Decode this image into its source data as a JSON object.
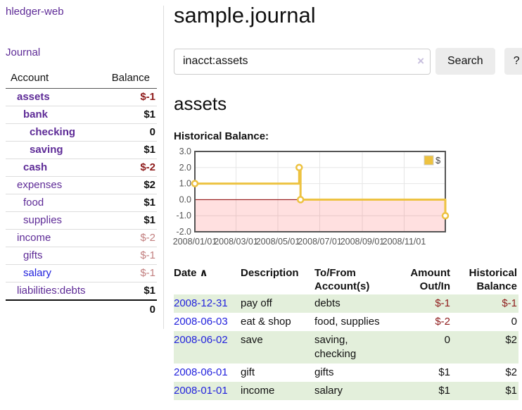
{
  "app": {
    "brand": "hledger-web"
  },
  "sidebar": {
    "nav": [
      {
        "label": "Journal"
      }
    ],
    "table": {
      "account_header": "Account",
      "balance_header": "Balance"
    },
    "accounts": [
      {
        "name": "assets",
        "level": 1,
        "bold": true,
        "name_style": "visited",
        "balance": "$-1",
        "balance_style": "neg-strong"
      },
      {
        "name": "bank",
        "level": 2,
        "bold": true,
        "name_style": "visited",
        "balance": "$1",
        "balance_style": "pos"
      },
      {
        "name": "checking",
        "level": 3,
        "bold": true,
        "name_style": "visited",
        "balance": "0",
        "balance_style": "pos"
      },
      {
        "name": "saving",
        "level": 3,
        "bold": true,
        "name_style": "visited",
        "balance": "$1",
        "balance_style": "pos"
      },
      {
        "name": "cash",
        "level": 2,
        "bold": true,
        "name_style": "visited",
        "balance": "$-2",
        "balance_style": "neg-strong"
      },
      {
        "name": "expenses",
        "level": 1,
        "bold": false,
        "name_style": "visited",
        "balance": "$2",
        "balance_style": "pos"
      },
      {
        "name": "food",
        "level": 2,
        "bold": false,
        "name_style": "visited",
        "balance": "$1",
        "balance_style": "pos"
      },
      {
        "name": "supplies",
        "level": 2,
        "bold": false,
        "name_style": "visited",
        "balance": "$1",
        "balance_style": "pos"
      },
      {
        "name": "income",
        "level": 1,
        "bold": false,
        "name_style": "visited",
        "balance": "$-2",
        "balance_style": "neg-soft"
      },
      {
        "name": "gifts",
        "level": 2,
        "bold": false,
        "name_style": "visited",
        "balance": "$-1",
        "balance_style": "neg-soft"
      },
      {
        "name": "salary",
        "level": 2,
        "bold": false,
        "name_style": "unvisited",
        "balance": "$-1",
        "balance_style": "neg-soft"
      },
      {
        "name": "liabilities:debts",
        "level": 1,
        "bold": false,
        "name_style": "visited",
        "balance": "$1",
        "balance_style": "pos"
      }
    ],
    "total": "0"
  },
  "header": {
    "title": "sample.journal"
  },
  "search": {
    "value": "inacct:assets",
    "clear_icon": "×",
    "button": "Search",
    "help_button": "?"
  },
  "main": {
    "account_heading": "assets",
    "chart_label": "Historical Balance:"
  },
  "chart_data": {
    "type": "line",
    "title": "Historical Balance:",
    "series": [
      {
        "name": "$",
        "color": "#edc240",
        "step": true,
        "points": [
          [
            "2008-01-01",
            1
          ],
          [
            "2008-06-01",
            2
          ],
          [
            "2008-06-03",
            0
          ],
          [
            "2008-12-31",
            -1
          ]
        ]
      }
    ],
    "x_range": [
      "2008-01-01",
      "2008-12-31"
    ],
    "x_ticks": [
      "2008/01/01",
      "2008/03/01",
      "2008/05/01",
      "2008/07/01",
      "2008/09/01",
      "2008/11/01"
    ],
    "y_ticks": [
      "3.0",
      "2.0",
      "1.0",
      "0.0",
      "-1.0",
      "-2.0"
    ],
    "ylim": [
      -2,
      3
    ],
    "grid": true,
    "legend_position": "top-right",
    "negative_region_color": "rgba(255,0,0,0.12)",
    "zero_line_color": "#8b0000",
    "border_color": "#545454",
    "tick_label_color": "#545454"
  },
  "register": {
    "headers": [
      {
        "label": "Date",
        "sort": "∧",
        "align": "left"
      },
      {
        "label": "Description",
        "align": "left"
      },
      {
        "label": "To/From Account(s)",
        "align": "left"
      },
      {
        "label": "Amount Out/In",
        "align": "right"
      },
      {
        "label": "Historical Balance",
        "align": "right"
      }
    ],
    "rows": [
      {
        "date": "2008-12-31",
        "description": "pay off",
        "accounts": "debts",
        "amount": "$-1",
        "amount_negative": true,
        "balance": "$-1",
        "balance_negative": true
      },
      {
        "date": "2008-06-03",
        "description": "eat & shop",
        "accounts": "food, supplies",
        "amount": "$-2",
        "amount_negative": true,
        "balance": "0",
        "balance_negative": false
      },
      {
        "date": "2008-06-02",
        "description": "save",
        "accounts": "saving, checking",
        "amount": "0",
        "amount_negative": false,
        "balance": "$2",
        "balance_negative": false
      },
      {
        "date": "2008-06-01",
        "description": "gift",
        "accounts": "gifts",
        "amount": "$1",
        "amount_negative": false,
        "balance": "$2",
        "balance_negative": false
      },
      {
        "date": "2008-01-01",
        "description": "income",
        "accounts": "salary",
        "amount": "$1",
        "amount_negative": false,
        "balance": "$1",
        "balance_negative": false
      }
    ]
  },
  "colors": {
    "purple_link": "#5e2b97",
    "blue_link": "#2222dd",
    "negative_strong": "#8e1b1b",
    "negative_soft": "#c27f7f",
    "row_green": "#e3efdb",
    "series_gold": "#edc240",
    "button_gray": "#ececec"
  }
}
